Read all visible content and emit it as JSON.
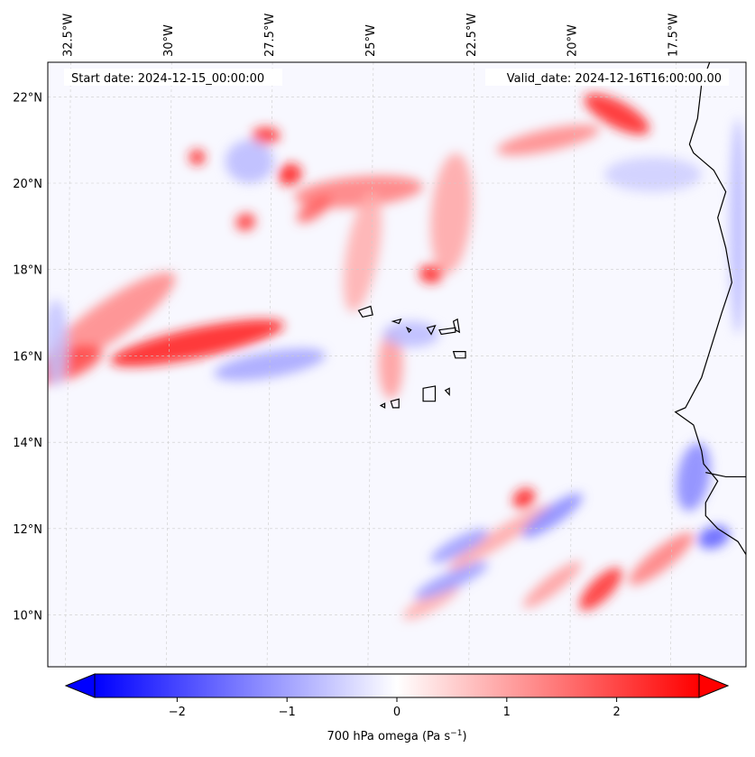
{
  "map": {
    "start_label": "Start date: 2024-12-15_00:00:00",
    "valid_label": "Valid_date: 2024-12-16T16:00:00.00",
    "extent": {
      "lon_min": -33.0,
      "lon_max": -15.7,
      "lat_min": 8.8,
      "lat_max": 22.8
    },
    "lon_ticks": [
      {
        "lon": -32.5,
        "label": "32.5°W"
      },
      {
        "lon": -30.0,
        "label": "30°W"
      },
      {
        "lon": -27.5,
        "label": "27.5°W"
      },
      {
        "lon": -25.0,
        "label": "25°W"
      },
      {
        "lon": -22.5,
        "label": "22.5°W"
      },
      {
        "lon": -20.0,
        "label": "20°W"
      },
      {
        "lon": -17.5,
        "label": "17.5°W"
      }
    ],
    "lat_ticks": [
      {
        "lat": 22,
        "label": "22°N"
      },
      {
        "lat": 20,
        "label": "20°N"
      },
      {
        "lat": 18,
        "label": "18°N"
      },
      {
        "lat": 16,
        "label": "16°N"
      },
      {
        "lat": 14,
        "label": "14°N"
      },
      {
        "lat": 12,
        "label": "12°N"
      },
      {
        "lat": 10,
        "label": "10°N"
      }
    ],
    "features": [
      {
        "lon": -29.3,
        "lat": 16.3,
        "value": 2.3,
        "rx": 2.2,
        "ry": 0.35,
        "rot": -12
      },
      {
        "lon": -31.5,
        "lat": 16.8,
        "value": 1.2,
        "rx": 2.0,
        "ry": 0.45,
        "rot": -35
      },
      {
        "lon": -32.6,
        "lat": 15.8,
        "value": 1.8,
        "rx": 1.0,
        "ry": 0.35,
        "rot": -20
      },
      {
        "lon": -25.3,
        "lat": 19.8,
        "value": 1.3,
        "rx": 1.6,
        "ry": 0.35,
        "rot": -5
      },
      {
        "lon": -25.2,
        "lat": 18.4,
        "value": 0.8,
        "rx": 0.4,
        "ry": 1.4,
        "rot": 10
      },
      {
        "lon": -23.0,
        "lat": 19.3,
        "value": 0.9,
        "rx": 0.5,
        "ry": 1.4,
        "rot": 5
      },
      {
        "lon": -23.5,
        "lat": 17.9,
        "value": 2.2,
        "rx": 0.3,
        "ry": 0.22,
        "rot": 0
      },
      {
        "lon": -27.0,
        "lat": 20.2,
        "value": 2.3,
        "rx": 0.3,
        "ry": 0.25,
        "rot": -30
      },
      {
        "lon": -27.6,
        "lat": 21.1,
        "value": 2.1,
        "rx": 0.35,
        "ry": 0.2,
        "rot": 0
      },
      {
        "lon": -29.3,
        "lat": 20.6,
        "value": 2.2,
        "rx": 0.2,
        "ry": 0.18,
        "rot": 0
      },
      {
        "lon": -28.1,
        "lat": 19.1,
        "value": 2.0,
        "rx": 0.25,
        "ry": 0.2,
        "rot": -20
      },
      {
        "lon": -26.4,
        "lat": 19.4,
        "value": 1.6,
        "rx": 0.5,
        "ry": 0.2,
        "rot": -35
      },
      {
        "lon": -18.9,
        "lat": 21.6,
        "value": 2.2,
        "rx": 0.9,
        "ry": 0.3,
        "rot": 28
      },
      {
        "lon": -20.6,
        "lat": 21.0,
        "value": 1.2,
        "rx": 1.3,
        "ry": 0.25,
        "rot": -12
      },
      {
        "lon": -24.5,
        "lat": 15.8,
        "value": 1.0,
        "rx": 0.3,
        "ry": 0.8,
        "rot": 0
      },
      {
        "lon": -21.2,
        "lat": 12.7,
        "value": 2.2,
        "rx": 0.3,
        "ry": 0.22,
        "rot": -35
      },
      {
        "lon": -21.8,
        "lat": 11.8,
        "value": 0.9,
        "rx": 1.5,
        "ry": 0.2,
        "rot": -32
      },
      {
        "lon": -19.3,
        "lat": 10.6,
        "value": 2.1,
        "rx": 0.7,
        "ry": 0.25,
        "rot": -45
      },
      {
        "lon": -17.8,
        "lat": 11.3,
        "value": 1.3,
        "rx": 1.0,
        "ry": 0.25,
        "rot": -38
      },
      {
        "lon": -20.5,
        "lat": 10.7,
        "value": 1.0,
        "rx": 0.9,
        "ry": 0.2,
        "rot": -38
      },
      {
        "lon": -23.5,
        "lat": 10.3,
        "value": 0.8,
        "rx": 0.8,
        "ry": 0.2,
        "rot": -30
      },
      {
        "lon": -27.5,
        "lat": 15.8,
        "value": -0.9,
        "rx": 1.4,
        "ry": 0.3,
        "rot": -10
      },
      {
        "lon": -24.0,
        "lat": 16.5,
        "value": -0.7,
        "rx": 0.7,
        "ry": 0.3,
        "rot": 0
      },
      {
        "lon": -20.5,
        "lat": 12.3,
        "value": -1.2,
        "rx": 0.9,
        "ry": 0.22,
        "rot": -35
      },
      {
        "lon": -22.8,
        "lat": 11.6,
        "value": -1.0,
        "rx": 0.8,
        "ry": 0.2,
        "rot": -28
      },
      {
        "lon": -16.5,
        "lat": 11.8,
        "value": -1.6,
        "rx": 0.4,
        "ry": 0.25,
        "rot": -20
      },
      {
        "lon": -17.0,
        "lat": 13.2,
        "value": -1.2,
        "rx": 0.4,
        "ry": 0.8,
        "rot": 10
      },
      {
        "lon": -28.0,
        "lat": 20.5,
        "value": -0.7,
        "rx": 0.6,
        "ry": 0.5,
        "rot": 0
      },
      {
        "lon": -23.0,
        "lat": 10.8,
        "value": -1.0,
        "rx": 1.0,
        "ry": 0.2,
        "rot": -25
      },
      {
        "lon": -18.0,
        "lat": 20.2,
        "value": -0.5,
        "rx": 1.2,
        "ry": 0.4,
        "rot": 0
      },
      {
        "lon": -15.9,
        "lat": 19.0,
        "value": -0.7,
        "rx": 0.2,
        "ry": 2.5,
        "rot": 0
      },
      {
        "lon": -32.8,
        "lat": 16.3,
        "value": -0.6,
        "rx": 0.3,
        "ry": 1.0,
        "rot": 0
      }
    ],
    "coastline": [
      [
        [
          -16.6,
          22.8
        ],
        [
          -16.8,
          22.3
        ],
        [
          -16.9,
          21.5
        ],
        [
          -17.1,
          20.9
        ],
        [
          -17.0,
          20.7
        ],
        [
          -16.5,
          20.3
        ],
        [
          -16.2,
          19.8
        ],
        [
          -16.4,
          19.2
        ],
        [
          -16.2,
          18.5
        ],
        [
          -16.05,
          17.7
        ],
        [
          -16.3,
          17.0
        ],
        [
          -16.5,
          16.4
        ],
        [
          -16.8,
          15.5
        ],
        [
          -17.2,
          14.8
        ],
        [
          -17.45,
          14.7
        ],
        [
          -17.0,
          14.4
        ],
        [
          -16.8,
          13.8
        ],
        [
          -16.75,
          13.5
        ],
        [
          -16.4,
          13.1
        ],
        [
          -16.7,
          12.6
        ],
        [
          -16.7,
          12.3
        ],
        [
          -16.4,
          12.0
        ],
        [
          -15.9,
          11.7
        ],
        [
          -15.7,
          11.4
        ]
      ],
      [
        [
          -15.7,
          13.2
        ],
        [
          -16.2,
          13.2
        ],
        [
          -16.7,
          13.3
        ]
      ]
    ],
    "islands": [
      [
        [
          -25.3,
          17.05
        ],
        [
          -25.0,
          17.15
        ],
        [
          -24.95,
          16.95
        ],
        [
          -25.2,
          16.9
        ]
      ],
      [
        [
          -24.45,
          16.8
        ],
        [
          -24.25,
          16.85
        ],
        [
          -24.3,
          16.75
        ]
      ],
      [
        [
          -24.1,
          16.65
        ],
        [
          -24.0,
          16.6
        ],
        [
          -24.05,
          16.55
        ]
      ],
      [
        [
          -23.6,
          16.65
        ],
        [
          -23.4,
          16.7
        ],
        [
          -23.5,
          16.5
        ]
      ],
      [
        [
          -23.3,
          16.6
        ],
        [
          -22.9,
          16.65
        ],
        [
          -22.9,
          16.55
        ],
        [
          -23.25,
          16.5
        ]
      ],
      [
        [
          -22.95,
          16.8
        ],
        [
          -22.85,
          16.85
        ],
        [
          -22.8,
          16.55
        ],
        [
          -22.9,
          16.6
        ]
      ],
      [
        [
          -22.95,
          16.1
        ],
        [
          -22.65,
          16.1
        ],
        [
          -22.65,
          15.95
        ],
        [
          -22.9,
          15.95
        ]
      ],
      [
        [
          -23.7,
          15.25
        ],
        [
          -23.4,
          15.3
        ],
        [
          -23.4,
          14.95
        ],
        [
          -23.7,
          14.95
        ]
      ],
      [
        [
          -24.5,
          14.95
        ],
        [
          -24.3,
          15.0
        ],
        [
          -24.3,
          14.8
        ],
        [
          -24.45,
          14.8
        ]
      ],
      [
        [
          -24.75,
          14.85
        ],
        [
          -24.65,
          14.9
        ],
        [
          -24.65,
          14.8
        ]
      ],
      [
        [
          -23.15,
          15.2
        ],
        [
          -23.05,
          15.25
        ],
        [
          -23.05,
          15.1
        ]
      ]
    ],
    "colors": {
      "negative": "#0000ff",
      "zero": "#ffffff",
      "positive": "#ff0000",
      "coast": "#000000",
      "grid": "#cccccc",
      "background": "#f8f8ff"
    }
  },
  "colorbar": {
    "vmin": -2.75,
    "vmax": 2.75,
    "ticks": [
      {
        "value": -2,
        "label": "−2"
      },
      {
        "value": -1,
        "label": "−1"
      },
      {
        "value": 0,
        "label": "0"
      },
      {
        "value": 1,
        "label": "1"
      },
      {
        "value": 2,
        "label": "2"
      }
    ],
    "label": "700 hPa omega (Pa s",
    "label_sup": "−1",
    "label_end": ")"
  }
}
